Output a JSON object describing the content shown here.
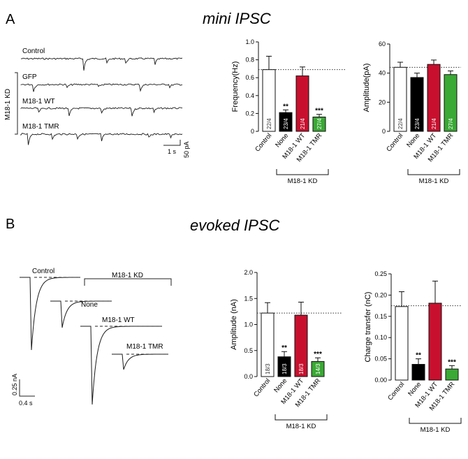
{
  "colors": {
    "control": "#ffffff",
    "none": "#000000",
    "wt": "#c8102e",
    "tmr": "#3aa935",
    "trace": "#1a1a1a"
  },
  "panel_a": {
    "letter": "A",
    "title": "mini IPSC",
    "trace_labels": [
      "Control",
      "GFP",
      "M18-1 WT",
      "M18-1 TMR"
    ],
    "kd_bracket_label": "M18-1 KD",
    "scale_time": "1 s",
    "scale_amp": "50 pA"
  },
  "panel_b": {
    "letter": "B",
    "title": "evoked IPSC",
    "trace_labels": [
      "Control",
      "None",
      "M18-1  WT",
      "M18-1  TMR"
    ],
    "kd_bracket_label": "M18-1 KD",
    "scale_time": "0.4 s",
    "scale_amp": "0.25 nA"
  },
  "chart_data": [
    {
      "type": "bar",
      "ylabel": "Frequency(Hz)",
      "ylim": [
        0,
        1.0
      ],
      "yticks": [
        "0",
        "0.2",
        "0.4",
        "0.6",
        "0.8",
        "1.0"
      ],
      "categories": [
        "Control",
        "None",
        "M18-1 WT",
        "M18-1 TMR"
      ],
      "values": [
        0.69,
        0.21,
        0.62,
        0.16
      ],
      "errors": [
        0.15,
        0.03,
        0.1,
        0.03
      ],
      "n_labels": [
        "22/4",
        "23/4",
        "21/4",
        "27/4"
      ],
      "stars": [
        "",
        "**",
        "",
        "***"
      ],
      "reference_line": 0.69,
      "group_label": "M18-1 KD"
    },
    {
      "type": "bar",
      "ylabel": "Amplitude(pA)",
      "ylim": [
        0,
        60
      ],
      "yticks": [
        "0",
        "20",
        "40",
        "60"
      ],
      "categories": [
        "Control",
        "None",
        "M18-1 WT",
        "M18-1 TMR"
      ],
      "values": [
        44,
        37,
        46,
        39
      ],
      "errors": [
        3.5,
        3,
        3,
        2.5
      ],
      "n_labels": [
        "22/4",
        "23/4",
        "21/4",
        "27/4"
      ],
      "stars": [
        "",
        "",
        "",
        ""
      ],
      "reference_line": 44,
      "group_label": "M18-1 KD"
    },
    {
      "type": "bar",
      "ylabel": "Amplitude (nA)",
      "ylim": [
        0,
        2.0
      ],
      "yticks": [
        "0.0",
        "0.5",
        "1.0",
        "1.5",
        "2.0"
      ],
      "categories": [
        "Control",
        "None",
        "M18-1 WT",
        "M18-1 TMR"
      ],
      "values": [
        1.22,
        0.38,
        1.18,
        0.29
      ],
      "errors": [
        0.2,
        0.1,
        0.25,
        0.07
      ],
      "n_labels": [
        "18/3",
        "18/3",
        "18/3",
        "14/3"
      ],
      "stars": [
        "",
        "**",
        "",
        "***"
      ],
      "reference_line": 1.22,
      "group_label": "M18-1 KD"
    },
    {
      "type": "bar",
      "ylabel": "Charge transfer (nC)",
      "ylim": [
        0,
        0.25
      ],
      "yticks": [
        "0.00",
        "0.05",
        "0.10",
        "0.15",
        "0.20",
        "0.25"
      ],
      "categories": [
        "Control",
        "None",
        "M18-1 WT",
        "M18-1 TMR"
      ],
      "values": [
        0.173,
        0.037,
        0.181,
        0.026
      ],
      "errors": [
        0.035,
        0.013,
        0.052,
        0.008
      ],
      "n_labels": [
        "",
        "",
        "",
        ""
      ],
      "stars": [
        "",
        "**",
        "",
        "***"
      ],
      "reference_line": 0.175,
      "group_label": "M18-1 KD"
    }
  ]
}
